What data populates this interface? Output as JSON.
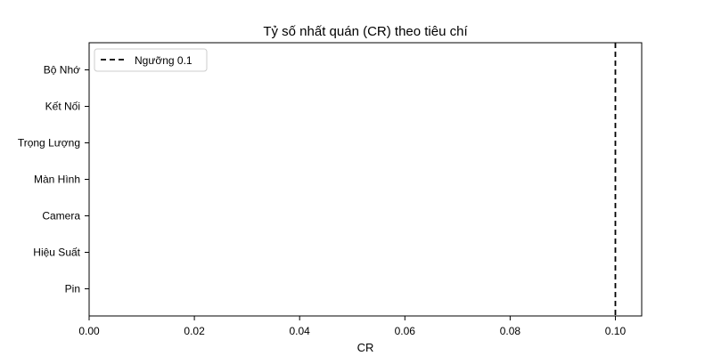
{
  "chart_data": {
    "type": "bar",
    "orientation": "horizontal",
    "title": "Tỷ số nhất quán (CR) theo tiêu chí",
    "xlabel": "CR",
    "ylabel": "",
    "categories": [
      "Pin",
      "Hiệu Suất",
      "Camera",
      "Màn Hình",
      "Trọng Lượng",
      "Kết Nối",
      "Bộ Nhớ"
    ],
    "values": [
      0,
      0,
      0,
      0,
      0,
      0,
      0
    ],
    "xlim": [
      0,
      0.105
    ],
    "xticks": [
      "0.00",
      "0.02",
      "0.04",
      "0.06",
      "0.08",
      "0.10"
    ],
    "reference_line": {
      "value": 0.1,
      "style": "dashed",
      "color": "#000000",
      "label": "Ngưỡng 0.1"
    },
    "legend": {
      "placement": "top-left",
      "entries": [
        "Ngưỡng 0.1"
      ]
    },
    "grid": false
  }
}
